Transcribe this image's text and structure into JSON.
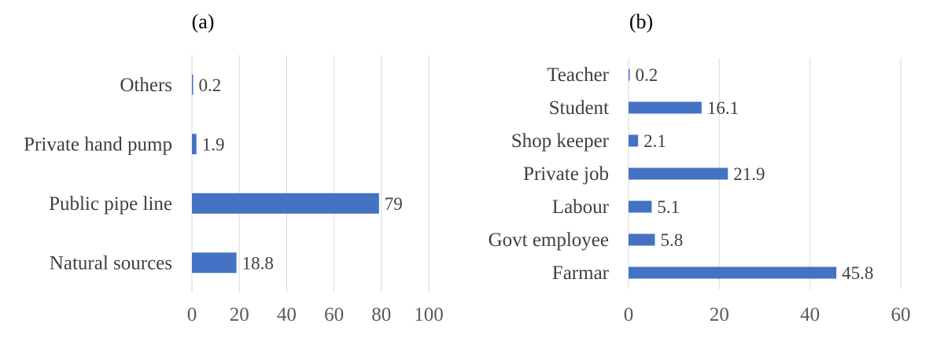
{
  "chart_data": [
    {
      "type": "bar",
      "orientation": "horizontal",
      "panel_label": "(a)",
      "categories": [
        "Others",
        "Private hand pump",
        "Public pipe line",
        "Natural sources"
      ],
      "values": [
        0.2,
        1.9,
        79,
        18.8
      ],
      "value_labels": [
        "0.2",
        "1.9",
        "79",
        "18.8"
      ],
      "xlim": [
        0,
        100
      ],
      "xticks": [
        "0",
        "20",
        "40",
        "60",
        "80",
        "100"
      ],
      "grid": true,
      "color": "#4472c4"
    },
    {
      "type": "bar",
      "orientation": "horizontal",
      "panel_label": "(b)",
      "categories": [
        "Teacher",
        "Student",
        "Shop keeper",
        "Private job",
        "Labour",
        "Govt employee",
        "Farmar"
      ],
      "values": [
        0.2,
        16.1,
        2.1,
        21.9,
        5.1,
        5.8,
        45.8
      ],
      "value_labels": [
        "0.2",
        "16.1",
        "2.1",
        "21.9",
        "5.1",
        "5.8",
        "45.8"
      ],
      "xlim": [
        0,
        60
      ],
      "xticks": [
        "0",
        "20",
        "40",
        "60"
      ],
      "grid": true,
      "color": "#4472c4"
    }
  ]
}
